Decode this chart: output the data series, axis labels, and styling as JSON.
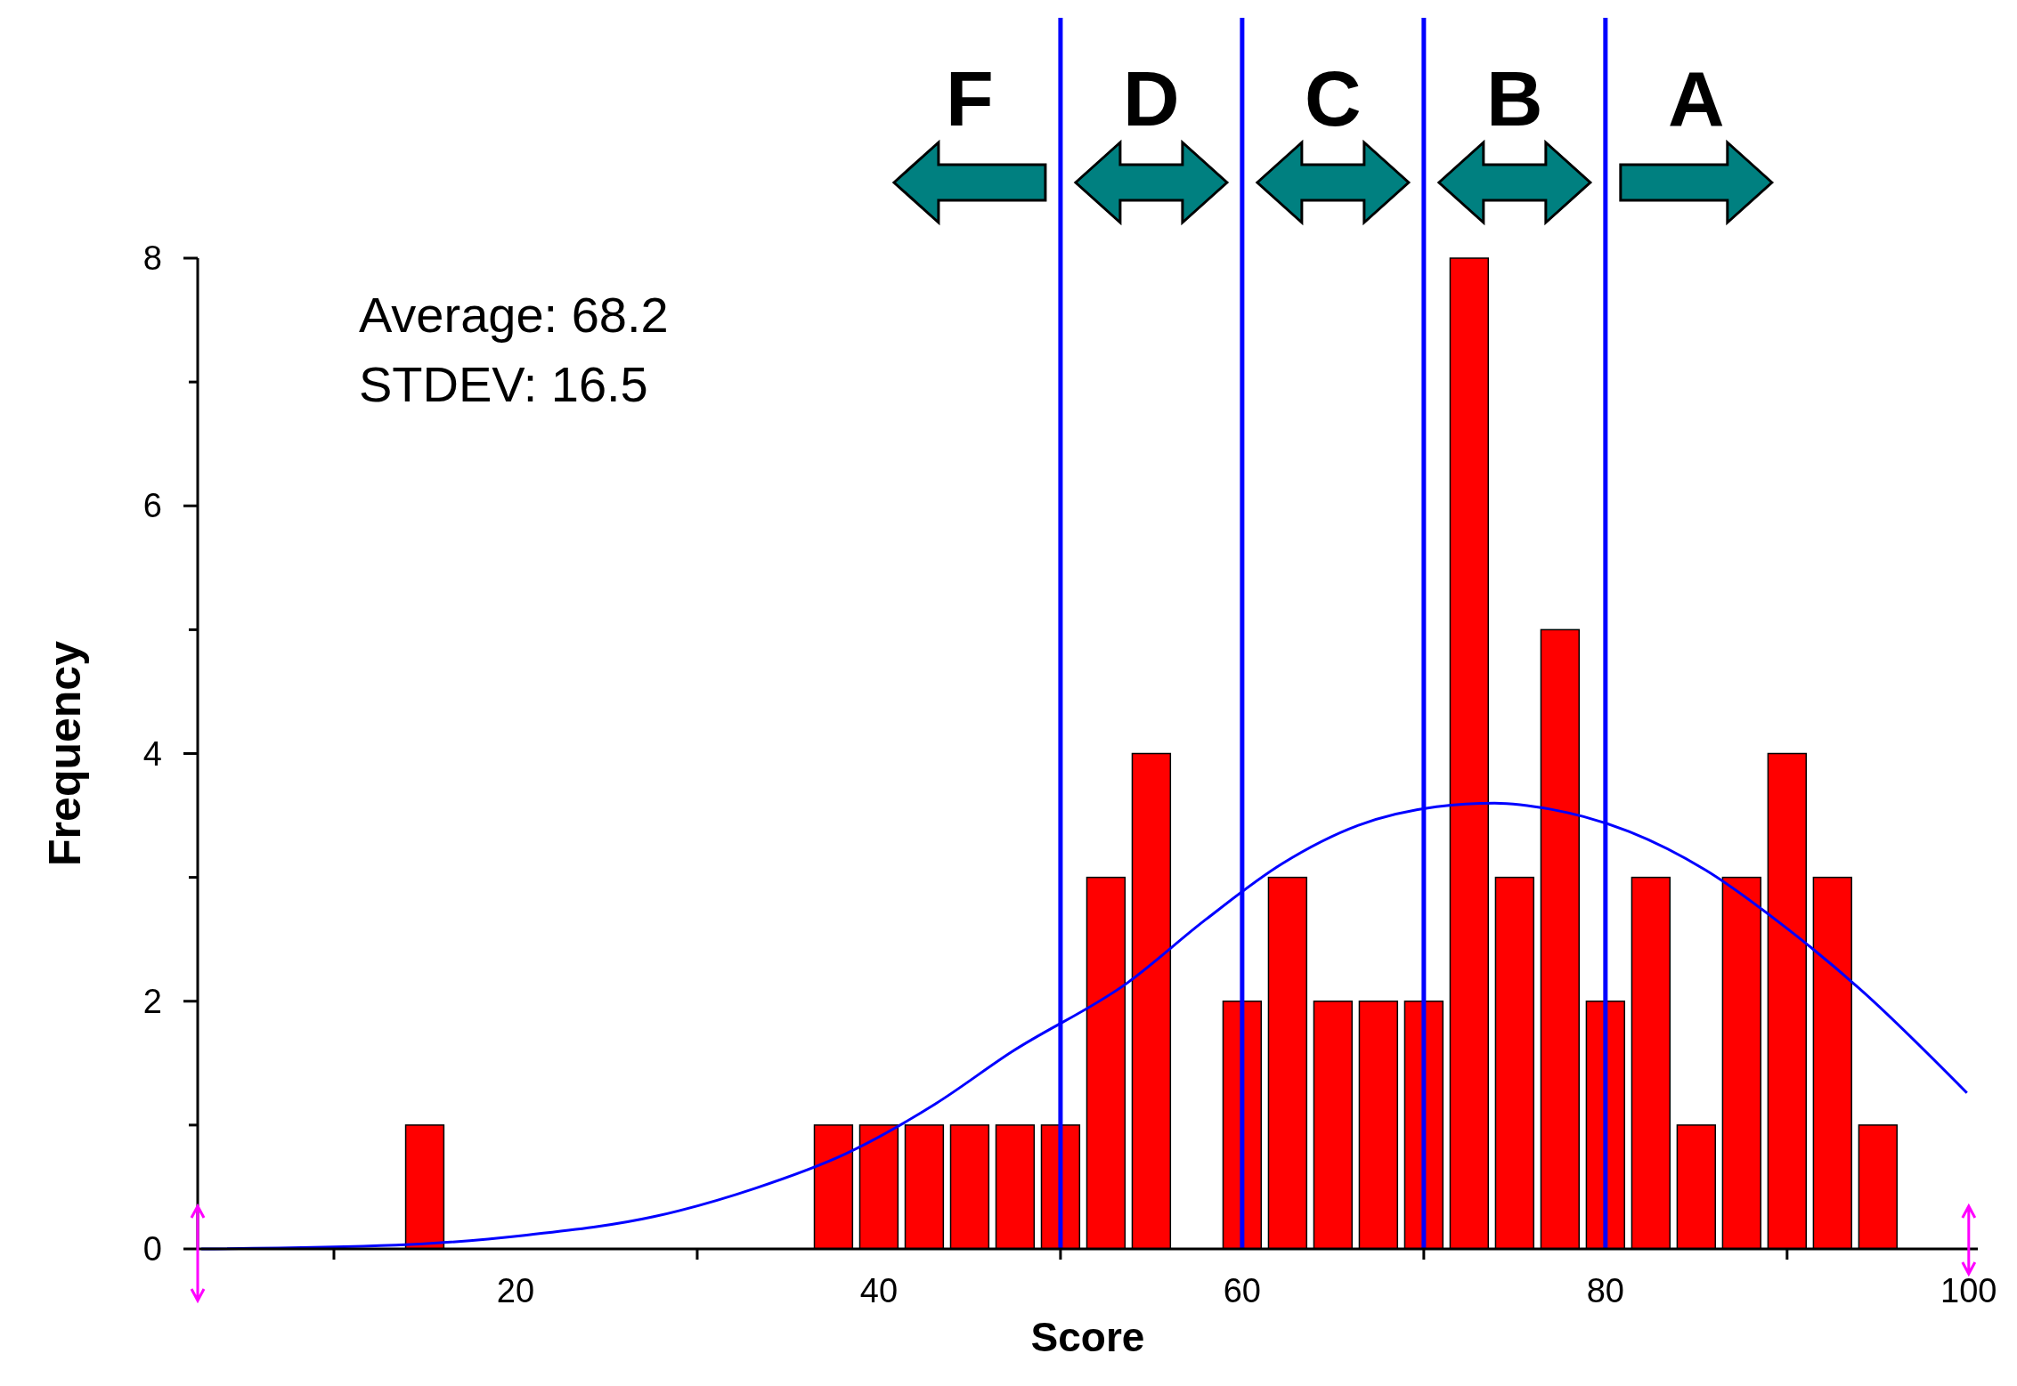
{
  "chart_data": {
    "type": "histogram",
    "xlabel": "Score",
    "ylabel": "Frequency",
    "bins": [
      13.75,
      16.25,
      18.75,
      21.25,
      23.75,
      26.25,
      28.75,
      31.25,
      33.75,
      36.25,
      38.75,
      41.25,
      43.75,
      46.25,
      48.75,
      51.25,
      53.75,
      56.25,
      58.75,
      61.25,
      63.75,
      66.25,
      68.75,
      71.25,
      73.75,
      76.25,
      78.75,
      81.25,
      83.75,
      86.25,
      88.75,
      91.25,
      93.75,
      96.25
    ],
    "values": [
      1,
      0,
      0,
      0,
      0,
      0,
      0,
      0,
      0,
      1,
      1,
      1,
      1,
      1,
      1,
      3,
      4,
      0,
      2,
      3,
      2,
      2,
      2,
      8,
      3,
      5,
      2,
      3,
      1,
      3,
      4,
      3,
      1
    ],
    "color": "#ff0000",
    "series": [
      {
        "type": "line",
        "color": "#0000ff",
        "x": [
          2.7,
          13.4,
          20.5,
          27.6,
          33.2,
          38.2,
          43.1,
          47.3,
          53.7,
          58,
          62.2,
          66.4,
          70.7,
          73.9,
          77,
          81.3,
          85.5,
          89.8,
          94,
          99.9
        ],
        "values": [
          0,
          0.03,
          0.11,
          0.26,
          0.49,
          0.77,
          1.17,
          1.59,
          2.15,
          2.66,
          3.11,
          3.42,
          3.57,
          3.6,
          3.55,
          3.37,
          3.06,
          2.61,
          2.1,
          1.26
        ]
      }
    ],
    "xlim": [
      2.5,
      100.5
    ],
    "ylim": [
      0,
      8
    ],
    "xticks": [
      {
        "value": 10,
        "label": null
      },
      20,
      {
        "value": 30,
        "label": null
      },
      40,
      {
        "value": 50,
        "label": null
      },
      60,
      {
        "value": 70,
        "label": null
      },
      80,
      {
        "value": 90,
        "label": null
      },
      100
    ],
    "yticks": [
      0,
      {
        "value": 1,
        "label": null
      },
      2,
      {
        "value": 3,
        "label": null
      },
      4,
      {
        "value": 5,
        "label": null
      },
      6,
      {
        "value": 7,
        "label": null
      },
      8
    ],
    "ref_lines": [
      {
        "axis": "x",
        "value": 50,
        "color": "#0000ff"
      },
      {
        "axis": "x",
        "value": 60,
        "color": "#0000ff"
      },
      {
        "axis": "x",
        "value": 70,
        "color": "#0000ff"
      },
      {
        "axis": "x",
        "value": 80,
        "color": "#0000ff"
      }
    ],
    "annotations": [
      "Average: 68.2",
      "STDEV: 16.5",
      "F",
      "D",
      "C",
      "B",
      "A"
    ]
  }
}
